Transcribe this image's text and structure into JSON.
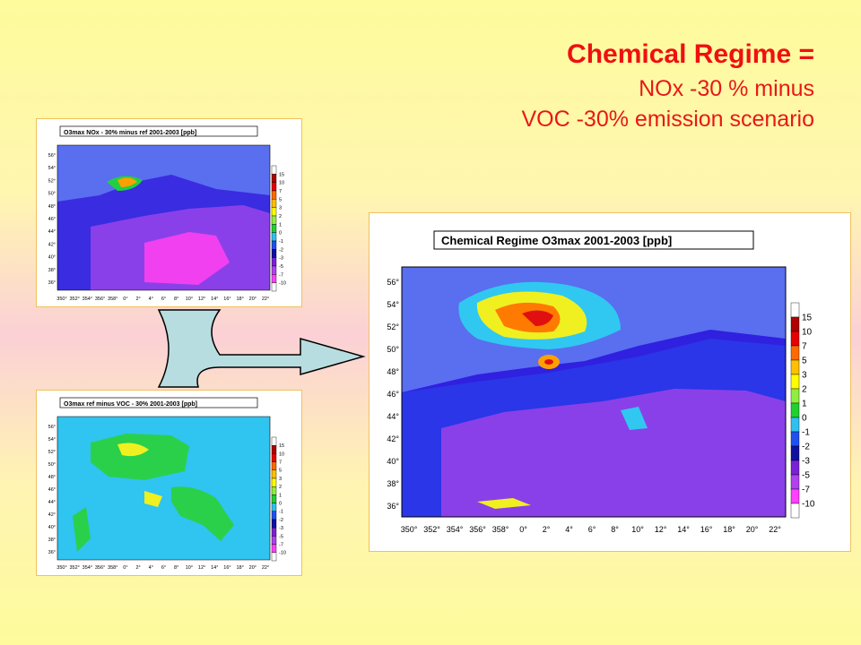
{
  "heading": {
    "line1": "Chemical Regime =",
    "line2": "NOx -30 % minus",
    "line3": "VOC -30% emission scenario"
  },
  "colors": {
    "title": "#ef1010",
    "panel_border": "#f0c060",
    "arrow_fill": "#b8dde0"
  },
  "lat_ticks": [
    "56°",
    "54°",
    "52°",
    "50°",
    "48°",
    "46°",
    "44°",
    "42°",
    "40°",
    "38°",
    "36°"
  ],
  "lon_ticks_small": [
    "350°",
    "352°",
    "354°",
    "356°",
    "358°",
    "0°",
    "2°",
    "4°",
    "6°",
    "8°",
    "10°",
    "12°",
    "14°",
    "16°",
    "18°",
    "20°",
    "22°"
  ],
  "lon_ticks_big": [
    "350°",
    "352°",
    "354°",
    "356°",
    "358°",
    "0°",
    "2°",
    "4°",
    "6°",
    "8°",
    "10°",
    "12°",
    "14°",
    "16°",
    "18°",
    "20°",
    "22°"
  ],
  "colorbar": {
    "levels": [
      "15",
      "10",
      "7",
      "5",
      "3",
      "2",
      "1",
      "0",
      "-1",
      "-2",
      "-3",
      "-5",
      "-7",
      "-10"
    ],
    "colors": [
      "#ffffff",
      "#b00000",
      "#e80000",
      "#ff6a00",
      "#ffc000",
      "#ffff00",
      "#90ee40",
      "#20d030",
      "#30c0f0",
      "#2050f0",
      "#1010a0",
      "#7a20d8",
      "#b040f0",
      "#ff40ff",
      "#ffffff"
    ]
  },
  "panels": {
    "top_left": {
      "title": "O3max   NOx - 30% minus ref  2001-2003 [ppb]"
    },
    "bottom_left": {
      "title": "O3max   ref minus VOC - 30%   2001-2003 [ppb]"
    },
    "right": {
      "title": "Chemical Regime O3max 2001-2003 [ppb]"
    }
  }
}
